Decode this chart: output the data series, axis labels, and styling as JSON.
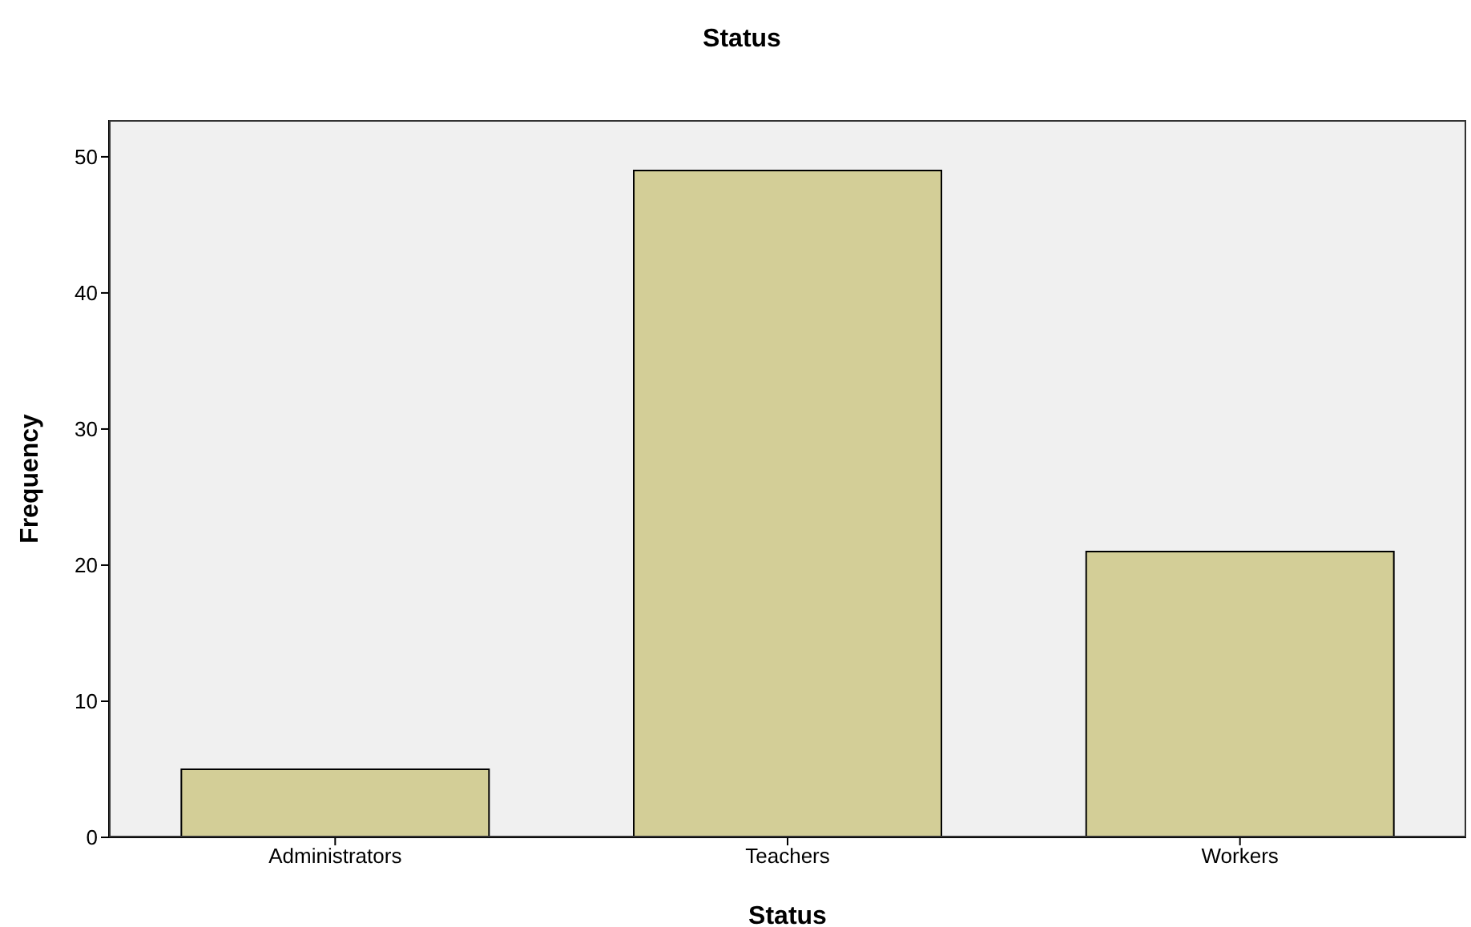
{
  "chart_data": {
    "type": "bar",
    "title": "Status",
    "xlabel": "Status",
    "ylabel": "Frequency",
    "categories": [
      "Administrators",
      "Teachers",
      "Workers"
    ],
    "values": [
      5,
      49,
      21
    ],
    "color": "#d3ce97",
    "ylim": [
      0,
      52.7
    ],
    "yticks": [
      0,
      10,
      20,
      30,
      40,
      50
    ],
    "grid": false,
    "legend": false
  }
}
